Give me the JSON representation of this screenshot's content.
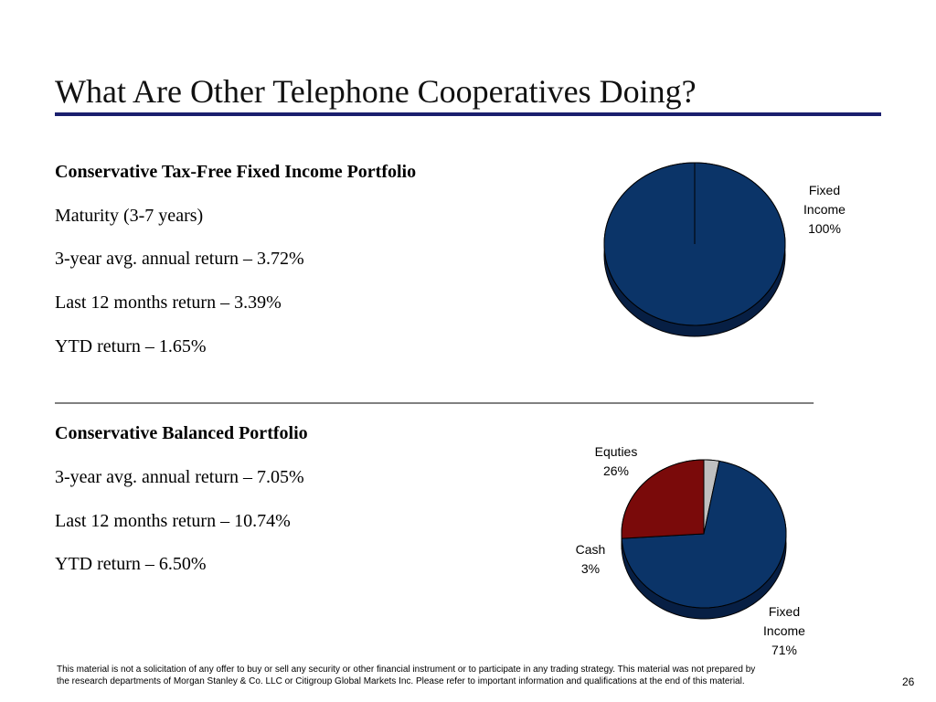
{
  "slide": {
    "title": "What Are Other Telephone Cooperatives Doing?",
    "page_number": "26",
    "separator": "___________________________________________________________________________________"
  },
  "portfolio1": {
    "heading": "Conservative Tax-Free Fixed Income Portfolio",
    "lines": [
      "Maturity (3-7 years)",
      "3-year avg. annual return – 3.72%",
      "Last 12 months return – 3.39%",
      "YTD return – 1.65%"
    ]
  },
  "portfolio2": {
    "heading": "Conservative Balanced Portfolio",
    "lines": [
      "3-year avg. annual return – 7.05%",
      "Last 12 months return – 10.74%",
      "YTD return – 6.50%"
    ]
  },
  "footer": {
    "line1": "This material is not a solicitation of any offer to buy or sell any security or other financial instrument or to participate in any trading strategy.  This material was not prepared by",
    "line2": "the research departments of Morgan Stanley & Co. LLC  or Citigroup Global Markets Inc.  Please refer to important information and qualifications at the end of this material."
  },
  "chart_data": [
    {
      "type": "pie",
      "title": "",
      "slices": [
        {
          "label_lines": [
            "Fixed",
            "Income",
            "100%"
          ],
          "name": "Fixed Income",
          "value": 100,
          "color": "#0b3468",
          "side": "#071f44"
        }
      ]
    },
    {
      "type": "pie",
      "title": "",
      "slices": [
        {
          "label_lines": [
            "Cash",
            "3%"
          ],
          "name": "Cash",
          "value": 3,
          "color": "#c0c0c0",
          "side": "#7d7d7d"
        },
        {
          "label_lines": [
            "Fixed",
            "Income",
            "71%"
          ],
          "name": "Fixed Income",
          "value": 71,
          "color": "#0b3468",
          "side": "#071f44"
        },
        {
          "label_lines": [
            "Equties",
            "26%"
          ],
          "name": "Equities",
          "value": 26,
          "color": "#7a0a0a",
          "side": "#4a0505"
        }
      ]
    }
  ]
}
